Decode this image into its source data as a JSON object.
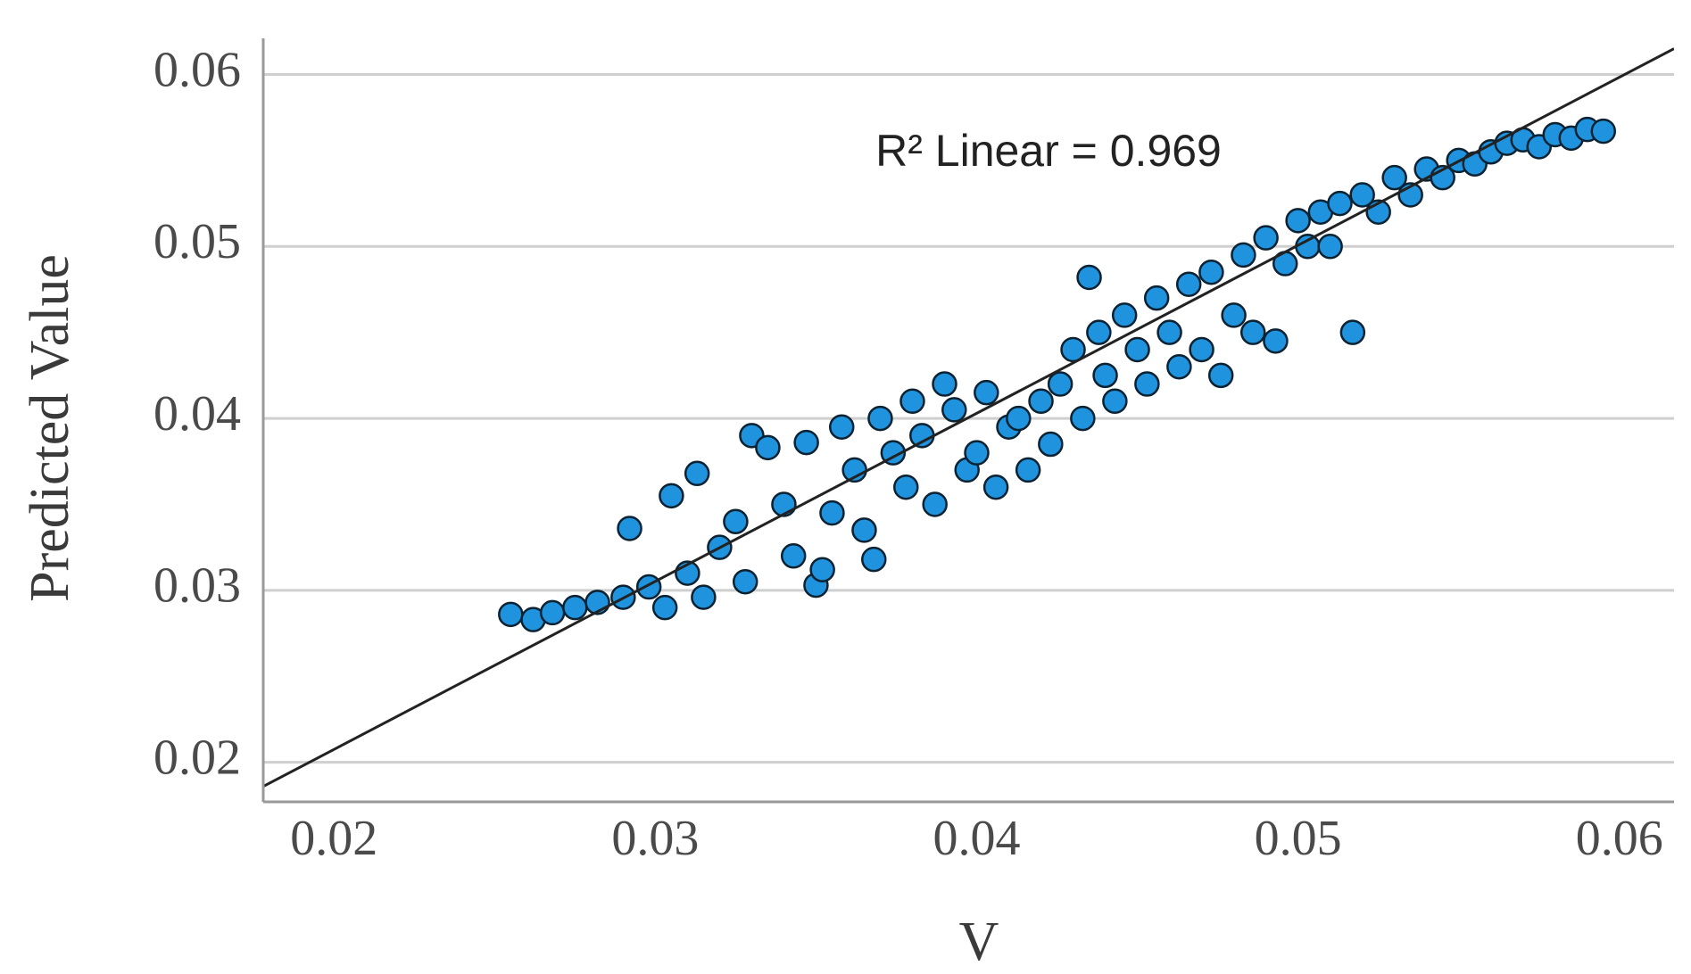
{
  "chart_data": {
    "type": "scatter",
    "x_label": "V",
    "y_label": "Predicted Value",
    "annotation": "R² Linear = 0.969",
    "xlim": [
      0.0178,
      0.0617
    ],
    "ylim": [
      0.0177,
      0.0621
    ],
    "xticks": [
      0.02,
      0.03,
      0.04,
      0.05,
      0.06
    ],
    "yticks": [
      0.02,
      0.03,
      0.04,
      0.05,
      0.06
    ],
    "grid": true,
    "color": "#1f93dd",
    "fit_line": {
      "x": [
        0.0178,
        0.0617
      ],
      "y": [
        0.0186,
        0.0615
      ]
    },
    "x": [
      0.0255,
      0.0262,
      0.0268,
      0.0275,
      0.0282,
      0.029,
      0.0292,
      0.0298,
      0.0303,
      0.0305,
      0.031,
      0.0313,
      0.0315,
      0.032,
      0.0325,
      0.0328,
      0.033,
      0.0335,
      0.034,
      0.0343,
      0.0347,
      0.035,
      0.0352,
      0.0355,
      0.0358,
      0.0362,
      0.0365,
      0.0368,
      0.037,
      0.0374,
      0.0378,
      0.038,
      0.0383,
      0.0387,
      0.039,
      0.0393,
      0.0397,
      0.04,
      0.0403,
      0.0406,
      0.041,
      0.0413,
      0.0416,
      0.042,
      0.0423,
      0.0426,
      0.043,
      0.0433,
      0.0435,
      0.0438,
      0.044,
      0.0443,
      0.0446,
      0.045,
      0.0453,
      0.0456,
      0.046,
      0.0463,
      0.0466,
      0.047,
      0.0473,
      0.0476,
      0.048,
      0.0483,
      0.0486,
      0.049,
      0.0493,
      0.0496,
      0.05,
      0.0503,
      0.0507,
      0.051,
      0.0513,
      0.0517,
      0.052,
      0.0525,
      0.053,
      0.0535,
      0.054,
      0.0545,
      0.055,
      0.0555,
      0.056,
      0.0565,
      0.057,
      0.0575,
      0.058,
      0.0585,
      0.059,
      0.0595
    ],
    "y": [
      0.0286,
      0.0283,
      0.0287,
      0.029,
      0.0293,
      0.0296,
      0.0336,
      0.0302,
      0.029,
      0.0355,
      0.031,
      0.0368,
      0.0296,
      0.0325,
      0.034,
      0.0305,
      0.039,
      0.0383,
      0.035,
      0.032,
      0.0386,
      0.0303,
      0.0312,
      0.0345,
      0.0395,
      0.037,
      0.0335,
      0.0318,
      0.04,
      0.038,
      0.036,
      0.041,
      0.039,
      0.035,
      0.042,
      0.0405,
      0.037,
      0.038,
      0.0415,
      0.036,
      0.0395,
      0.04,
      0.037,
      0.041,
      0.0385,
      0.042,
      0.044,
      0.04,
      0.0482,
      0.045,
      0.0425,
      0.041,
      0.046,
      0.044,
      0.042,
      0.047,
      0.045,
      0.043,
      0.0478,
      0.044,
      0.0485,
      0.0425,
      0.046,
      0.0495,
      0.045,
      0.0505,
      0.0445,
      0.049,
      0.0515,
      0.05,
      0.052,
      0.05,
      0.0525,
      0.045,
      0.053,
      0.052,
      0.054,
      0.053,
      0.0545,
      0.054,
      0.055,
      0.0548,
      0.0555,
      0.056,
      0.0562,
      0.0558,
      0.0565,
      0.0563,
      0.0568,
      0.0567
    ]
  }
}
